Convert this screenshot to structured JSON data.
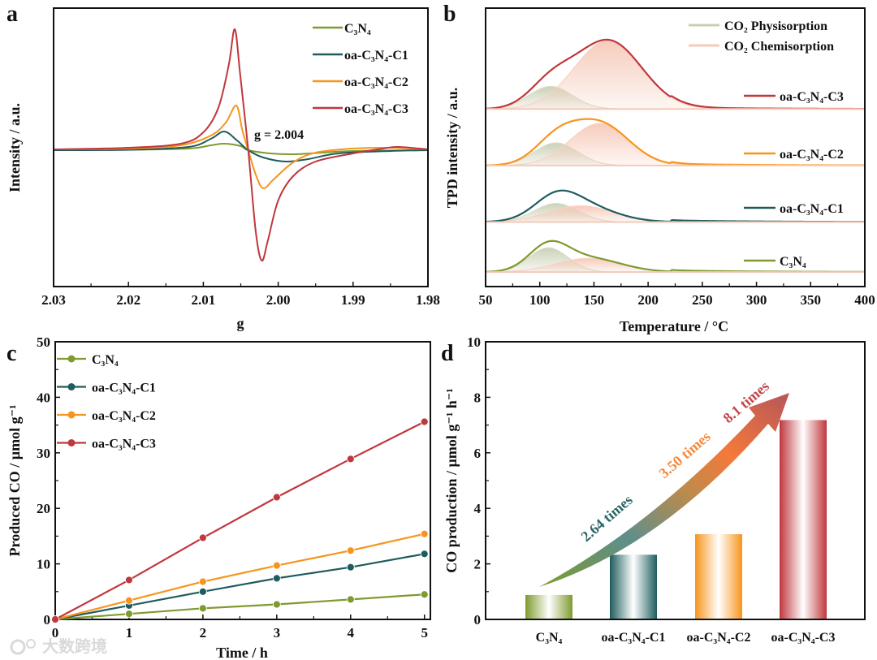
{
  "panel_labels": [
    "a",
    "b",
    "c",
    "d"
  ],
  "watermark": "大数跨境",
  "colors": {
    "C3N4": "#7f9a2f",
    "C1": "#1f5c5e",
    "C2": "#f7941d",
    "C3": "#c0373d",
    "phys": "#c9cfb4",
    "chem": "#f6c9b8"
  },
  "chart_data": [
    {
      "type": "line",
      "title": "",
      "xlabel": "g",
      "ylabel": "Intensity / a.u.",
      "xlim": [
        2.03,
        1.98
      ],
      "ylim": [
        -168,
        175
      ],
      "xticks": [
        2.03,
        2.02,
        2.01,
        2.0,
        1.99,
        1.98
      ],
      "xtick_labels": [
        "2.03",
        "2.02",
        "2.01",
        "2.00",
        "1.99",
        "1.98"
      ],
      "annotation": "g = 2.004",
      "legend_position": "top-right",
      "series": [
        {
          "name": "C₃N₄",
          "key": "C3N4",
          "points": [
            [
              2.03,
              0
            ],
            [
              2.02,
              0.5
            ],
            [
              2.012,
              2
            ],
            [
              2.009,
              6
            ],
            [
              2.0072,
              8
            ],
            [
              2.005,
              5
            ],
            [
              2.004,
              0
            ],
            [
              2.001,
              -4
            ],
            [
              1.998,
              -5
            ],
            [
              1.994,
              -3
            ],
            [
              1.99,
              -1
            ],
            [
              1.98,
              0
            ]
          ]
        },
        {
          "name": "oa-C₃N₄-C1",
          "key": "C1",
          "points": [
            [
              2.03,
              0
            ],
            [
              2.02,
              0.5
            ],
            [
              2.012,
              4
            ],
            [
              2.009,
              14
            ],
            [
              2.0072,
              23
            ],
            [
              2.0055,
              12
            ],
            [
              2.004,
              0
            ],
            [
              2.002,
              -9
            ],
            [
              1.999,
              -14
            ],
            [
              1.996,
              -11
            ],
            [
              1.992,
              -4
            ],
            [
              1.985,
              -1
            ],
            [
              1.98,
              0
            ]
          ]
        },
        {
          "name": "oa-C₃N₄-C2",
          "key": "C2",
          "points": [
            [
              2.03,
              1
            ],
            [
              2.02,
              2
            ],
            [
              2.013,
              6
            ],
            [
              2.009,
              18
            ],
            [
              2.007,
              34
            ],
            [
              2.0056,
              55
            ],
            [
              2.0048,
              25
            ],
            [
              2.004,
              0
            ],
            [
              2.003,
              -30
            ],
            [
              2.002,
              -47
            ],
            [
              2.0005,
              -35
            ],
            [
              1.998,
              -15
            ],
            [
              1.995,
              -3
            ],
            [
              1.99,
              2
            ],
            [
              1.985,
              3
            ],
            [
              1.98,
              1
            ]
          ]
        },
        {
          "name": "oa-C₃N₄-C3",
          "key": "C3",
          "points": [
            [
              2.03,
              1
            ],
            [
              2.02,
              3
            ],
            [
              2.013,
              8
            ],
            [
              2.01,
              22
            ],
            [
              2.008,
              52
            ],
            [
              2.0066,
              105
            ],
            [
              2.0058,
              149
            ],
            [
              2.0051,
              95
            ],
            [
              2.004,
              0
            ],
            [
              2.003,
              -100
            ],
            [
              2.0022,
              -136
            ],
            [
              2.0014,
              -112
            ],
            [
              2.0,
              -62
            ],
            [
              1.998,
              -32
            ],
            [
              1.995,
              -14
            ],
            [
              1.99,
              -4
            ],
            [
              1.986,
              2
            ],
            [
              1.984,
              4
            ],
            [
              1.98,
              1
            ]
          ]
        }
      ]
    },
    {
      "type": "area",
      "title": "",
      "xlabel": "Temperature / °C",
      "ylabel": "TPD intensity / a.u.",
      "xlim": [
        50,
        400
      ],
      "ylim": [
        -18,
        327
      ],
      "xticks": [
        50,
        100,
        150,
        200,
        250,
        300,
        350,
        400
      ],
      "xtick_labels": [
        "50",
        "100",
        "150",
        "200",
        "250",
        "300",
        "350",
        "400"
      ],
      "legend": [
        "CO₂ Physisorption",
        "CO₂ Chemisorption"
      ],
      "legend_position": "top-right",
      "series": [
        {
          "name": "C₃N₄",
          "key": "C3N4",
          "offset": 0,
          "phys": {
            "center": 108,
            "height": 30,
            "sigma": 18
          },
          "chem": {
            "center": 145,
            "height": 17,
            "sigma": 30
          }
        },
        {
          "name": "oa-C₃N₄-C1",
          "key": "C1",
          "offset": 62,
          "phys": {
            "center": 115,
            "height": 23,
            "sigma": 20
          },
          "chem": {
            "center": 138,
            "height": 20,
            "sigma": 30
          }
        },
        {
          "name": "oa-C₃N₄-C2",
          "key": "C2",
          "offset": 132,
          "phys": {
            "center": 115,
            "height": 28,
            "sigma": 20
          },
          "chem": {
            "center": 155,
            "height": 52,
            "sigma": 27
          }
        },
        {
          "name": "oa-C₃N₄-C3",
          "key": "C3",
          "offset": 202,
          "phys": {
            "center": 110,
            "height": 28,
            "sigma": 20
          },
          "chem": {
            "center": 163,
            "height": 85,
            "sigma": 31
          }
        }
      ]
    },
    {
      "type": "line",
      "title": "",
      "xlabel": "Time / h",
      "ylabel": "Produced CO / µmol g⁻¹",
      "xlim": [
        0,
        5.08
      ],
      "ylim": [
        0,
        50
      ],
      "xticks": [
        0,
        1,
        2,
        3,
        4,
        5
      ],
      "xtick_labels": [
        "0",
        "1",
        "2",
        "3",
        "4",
        "5"
      ],
      "yticks": [
        0,
        10,
        20,
        30,
        40,
        50
      ],
      "ytick_labels": [
        "0",
        "10",
        "20",
        "30",
        "40",
        "50"
      ],
      "legend_position": "top-left",
      "x": [
        0,
        1,
        2,
        3,
        4,
        5
      ],
      "series": [
        {
          "name": "C₃N₄",
          "key": "C3N4",
          "values": [
            0,
            1.0,
            2.0,
            2.7,
            3.6,
            4.5
          ]
        },
        {
          "name": "oa-C₃N₄-C1",
          "key": "C1",
          "values": [
            0,
            2.5,
            5.0,
            7.4,
            9.4,
            11.8
          ]
        },
        {
          "name": "oa-C₃N₄-C2",
          "key": "C2",
          "values": [
            0,
            3.4,
            6.8,
            9.7,
            12.4,
            15.4
          ]
        },
        {
          "name": "oa-C₃N₄-C3",
          "key": "C3",
          "values": [
            0,
            7.1,
            14.7,
            22.0,
            28.9,
            35.6
          ]
        }
      ]
    },
    {
      "type": "bar",
      "title": "",
      "xlabel": "",
      "ylabel": "CO production / µmol g⁻¹ h⁻¹",
      "ylim": [
        0,
        10
      ],
      "yticks": [
        0,
        2,
        4,
        6,
        8,
        10
      ],
      "ytick_labels": [
        "0",
        "2",
        "4",
        "6",
        "8",
        "10"
      ],
      "categories": [
        "C₃N₄",
        "oa-C₃N₄-C1",
        "oa-C₃N₄-C2",
        "oa-C₃N₄-C3"
      ],
      "keys": [
        "C3N4",
        "C1",
        "C2",
        "C3"
      ],
      "values": [
        0.88,
        2.33,
        3.07,
        7.18
      ],
      "annotations": [
        {
          "text": "2.64 times",
          "color": "#2a6668"
        },
        {
          "text": "3.50 times",
          "color": "#f5893a"
        },
        {
          "text": "8.1 times",
          "color": "#c0474c"
        }
      ]
    }
  ]
}
